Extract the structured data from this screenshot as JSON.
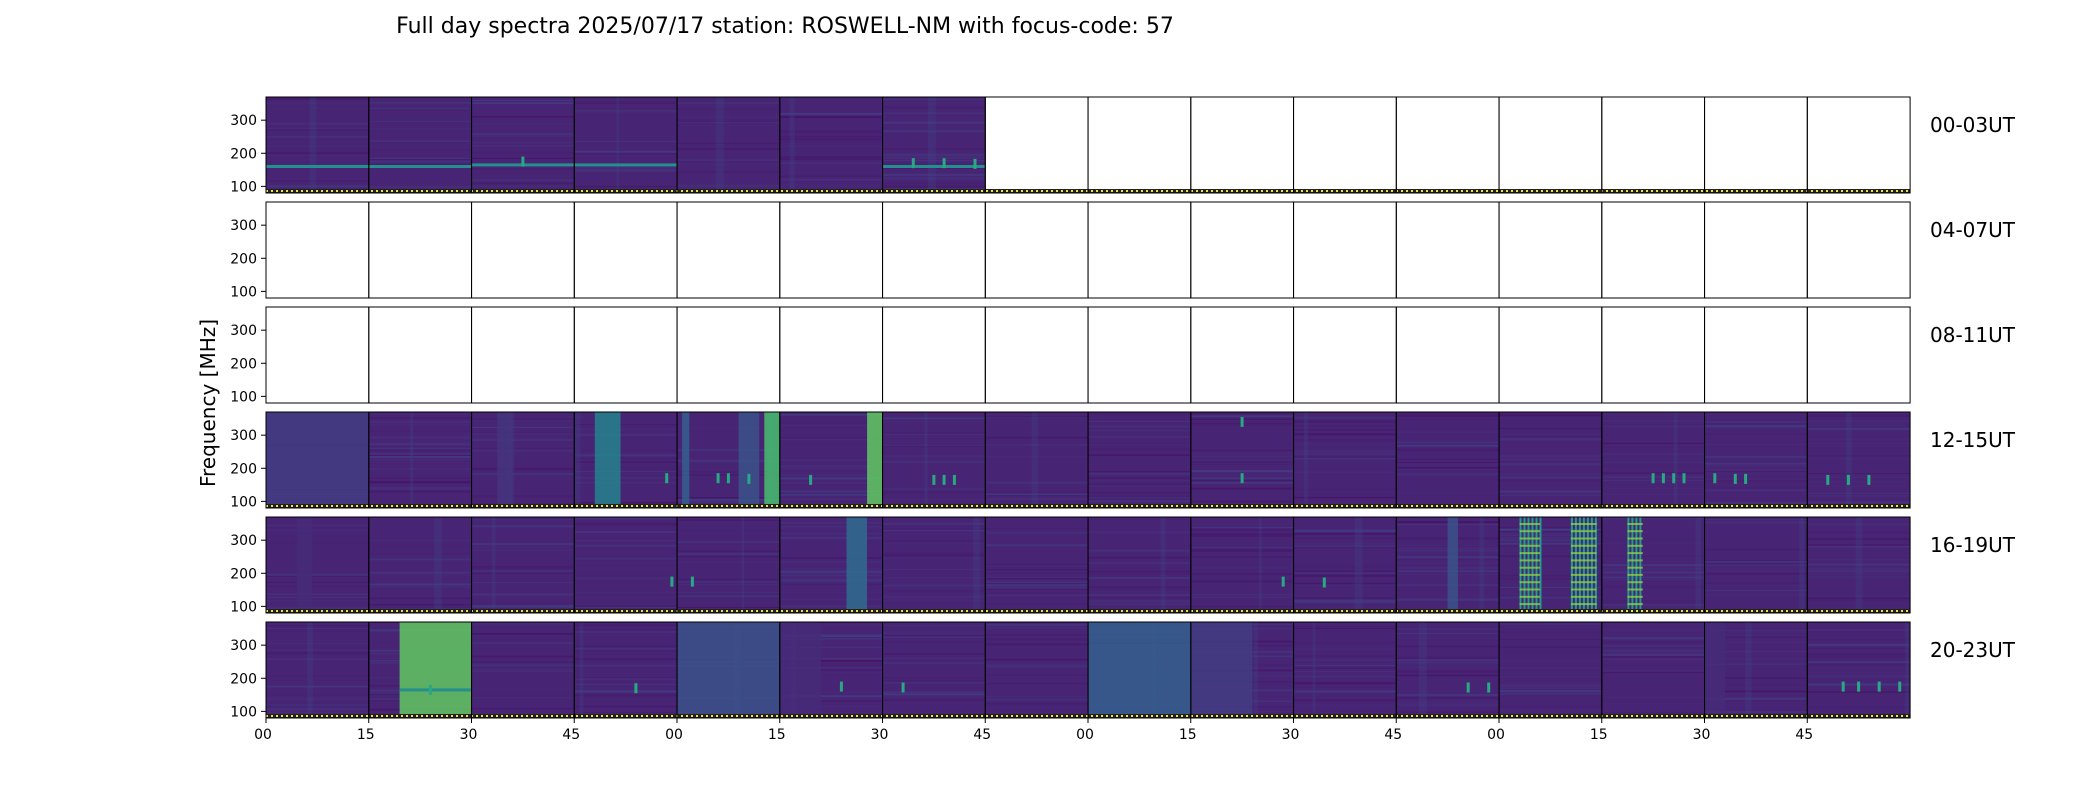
{
  "chart_data": {
    "type": "heatmap",
    "title": "Full day spectra 2025/07/17 station: ROSWELL-NM with focus-code: 57",
    "ylabel": "Frequency [MHz]",
    "xlabel": "",
    "ylim": [
      80,
      370
    ],
    "y_ticks": [
      100,
      200,
      300
    ],
    "x_tick_labels": [
      "00",
      "15",
      "30",
      "45",
      "00",
      "15",
      "30",
      "45",
      "00",
      "15",
      "30",
      "45",
      "00",
      "15",
      "30",
      "45"
    ],
    "panels_per_row": 16,
    "colormap": "viridis",
    "rows": [
      {
        "label": "00-03UT",
        "available": [
          1,
          1,
          1,
          1,
          1,
          1,
          1,
          0,
          0,
          0,
          0,
          0,
          0,
          0,
          0,
          0
        ],
        "bright_panels": [],
        "line_spans": [
          [
            0,
            2.0,
            160
          ],
          [
            2.0,
            4.0,
            165
          ],
          [
            6.0,
            7.0,
            160
          ]
        ],
        "bursts": [
          [
            2.5,
            175
          ],
          [
            6.3,
            170
          ],
          [
            6.6,
            170
          ],
          [
            6.9,
            168
          ]
        ]
      },
      {
        "label": "04-07UT",
        "available": [
          0,
          0,
          0,
          0,
          0,
          0,
          0,
          0,
          0,
          0,
          0,
          0,
          0,
          0,
          0,
          0
        ],
        "bright_panels": [],
        "line_spans": [],
        "bursts": []
      },
      {
        "label": "08-11UT",
        "available": [
          0,
          0,
          0,
          0,
          0,
          0,
          0,
          0,
          0,
          0,
          0,
          0,
          0,
          0,
          0,
          0
        ],
        "bright_panels": [],
        "line_spans": [],
        "bursts": []
      },
      {
        "label": "12-15UT",
        "available": [
          1,
          1,
          1,
          1,
          1,
          1,
          1,
          1,
          1,
          1,
          1,
          1,
          1,
          1,
          1,
          1
        ],
        "bright_panels": [
          [
            0,
            0.0,
            1.0,
            0.18
          ],
          [
            2,
            0.25,
            0.4,
            0.15
          ],
          [
            3,
            0.2,
            0.45,
            0.45
          ],
          [
            4,
            0.05,
            0.12,
            0.3
          ],
          [
            4,
            0.6,
            0.8,
            0.25
          ],
          [
            4,
            0.85,
            1.0,
            0.7
          ],
          [
            5,
            0.85,
            1.0,
            0.75
          ]
        ],
        "line_spans": [],
        "bursts": [
          [
            3.9,
            170
          ],
          [
            4.4,
            170
          ],
          [
            4.5,
            170
          ],
          [
            4.7,
            168
          ],
          [
            5.3,
            165
          ],
          [
            6.5,
            165
          ],
          [
            6.6,
            165
          ],
          [
            6.7,
            165
          ],
          [
            9.5,
            170
          ],
          [
            9.5,
            340
          ],
          [
            13.5,
            170
          ],
          [
            13.6,
            170
          ],
          [
            13.7,
            170
          ],
          [
            13.8,
            170
          ],
          [
            14.1,
            170
          ],
          [
            14.3,
            168
          ],
          [
            14.4,
            168
          ],
          [
            15.2,
            165
          ],
          [
            15.4,
            165
          ],
          [
            15.6,
            165
          ],
          [
            16.3,
            170
          ],
          [
            16.4,
            170
          ]
        ]
      },
      {
        "label": "16-19UT",
        "available": [
          1,
          1,
          1,
          1,
          1,
          1,
          1,
          1,
          1,
          1,
          1,
          1,
          1,
          1,
          1,
          1
        ],
        "bright_panels": [
          [
            0,
            0.3,
            0.45,
            0.12
          ],
          [
            5,
            0.65,
            0.85,
            0.35
          ],
          [
            11,
            0.5,
            0.6,
            0.25
          ]
        ],
        "bars": [
          [
            12.2,
            12.4
          ],
          [
            12.7,
            12.95
          ],
          [
            13.25,
            13.4
          ]
        ],
        "line_spans": [],
        "bursts": [
          [
            3.95,
            175
          ],
          [
            4.15,
            175
          ],
          [
            9.9,
            175
          ],
          [
            10.3,
            172
          ]
        ]
      },
      {
        "label": "20-23UT",
        "available": [
          1,
          1,
          1,
          1,
          1,
          1,
          1,
          1,
          1,
          1,
          1,
          1,
          1,
          1,
          1,
          1
        ],
        "bright_panels": [
          [
            1,
            0.3,
            1.0,
            0.75
          ],
          [
            4,
            0.0,
            1.0,
            0.25
          ],
          [
            5,
            0.0,
            0.4,
            0.12
          ],
          [
            8,
            0.0,
            1.0,
            0.3
          ],
          [
            9,
            0.0,
            0.6,
            0.18
          ],
          [
            14,
            0.0,
            0.2,
            0.12
          ]
        ],
        "line_spans": [
          [
            1.3,
            2.0,
            165
          ]
        ],
        "bursts": [
          [
            1.6,
            165
          ],
          [
            3.6,
            170
          ],
          [
            5.6,
            175
          ],
          [
            6.2,
            172
          ],
          [
            11.7,
            172
          ],
          [
            11.9,
            172
          ],
          [
            15.35,
            175
          ],
          [
            15.5,
            175
          ],
          [
            15.7,
            175
          ],
          [
            15.9,
            175
          ]
        ]
      }
    ]
  }
}
